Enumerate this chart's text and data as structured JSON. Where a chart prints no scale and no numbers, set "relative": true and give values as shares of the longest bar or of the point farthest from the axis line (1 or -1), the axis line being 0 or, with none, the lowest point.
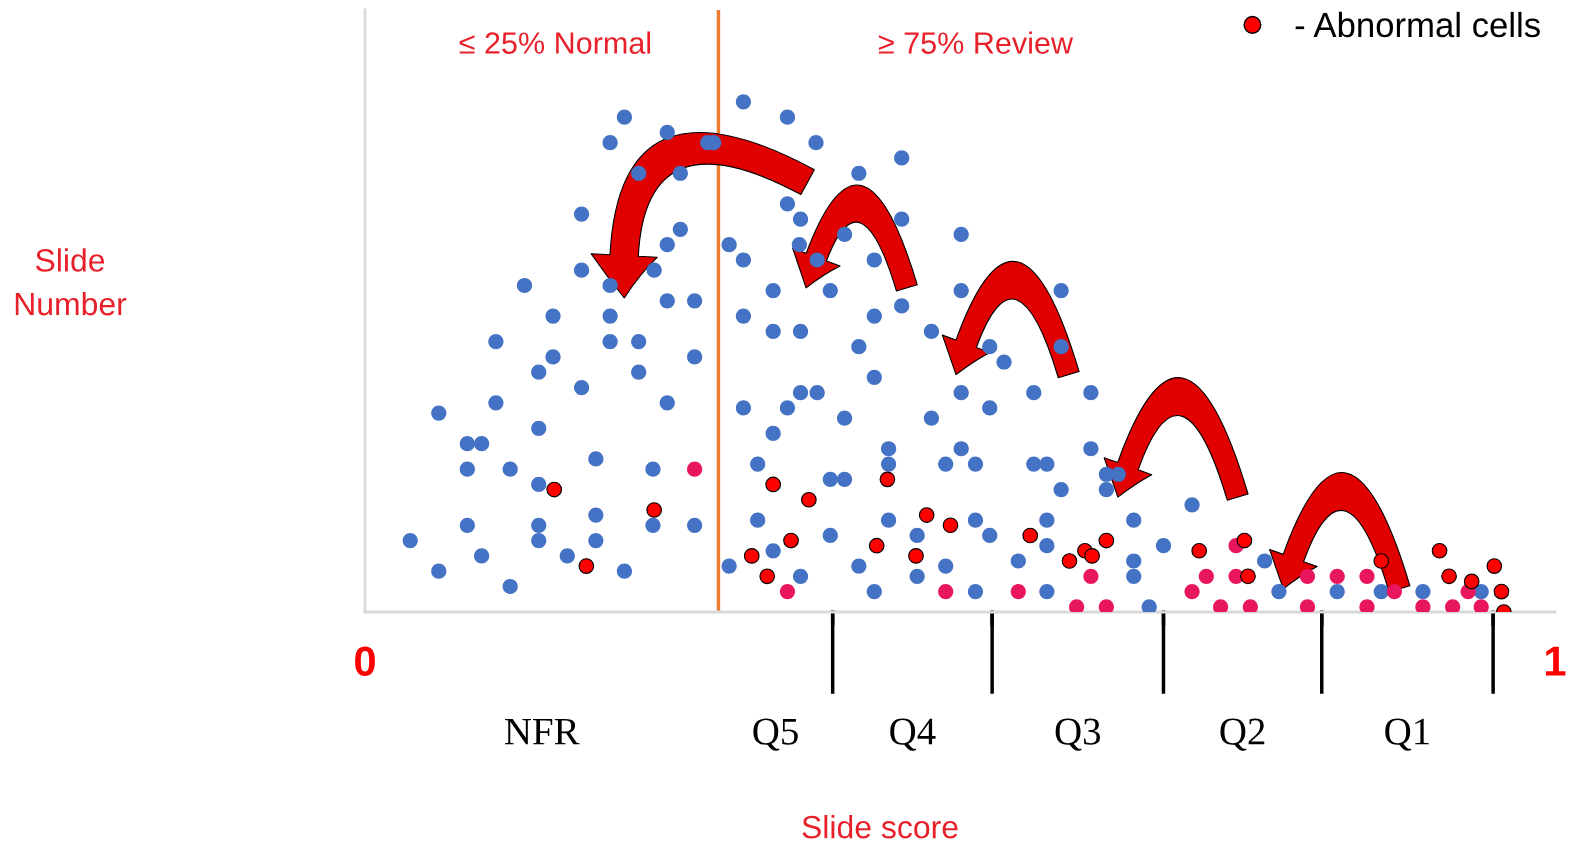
{
  "chart_data": {
    "type": "scatter",
    "relative": true,
    "xlabel": "Slide score",
    "annotations": [
      "≤ 25% Normal",
      "≥ 75% Review",
      "NFR",
      "Q5",
      "Q4",
      "Q3",
      "Q2",
      "Q1",
      "Slide\nNumber"
    ],
    "xlim": [
      0,
      1
    ],
    "xticks": [
      0,
      {
        "value": 0.393,
        "label": null
      },
      {
        "value": 0.527,
        "label": null
      },
      {
        "value": 0.671,
        "label": null
      },
      {
        "value": 0.804,
        "label": null
      },
      {
        "value": 0.948,
        "label": null
      },
      1
    ],
    "ref_lines": [
      {
        "axis": "x",
        "value": 0.297,
        "color": "#ed7d31"
      }
    ],
    "legend": "top right",
    "marker": "circle",
    "series": [
      {
        "color": "#4472c4",
        "x": [
          0.218,
          0.206,
          0.254,
          0.288,
          0.23,
          0.265,
          0.182,
          0.265,
          0.254,
          0.182,
          0.206,
          0.134,
          0.243,
          0.254,
          0.277,
          0.158,
          0.206,
          0.11,
          0.206,
          0.23,
          0.158,
          0.277,
          0.146,
          0.23,
          0.182,
          0.11,
          0.254,
          0.062,
          0.146,
          0.086,
          0.098,
          0.194,
          0.086,
          0.122,
          0.242,
          0.146,
          0.194,
          0.086,
          0.146,
          0.242,
          0.277,
          0.038,
          0.146,
          0.194,
          0.098,
          0.17,
          0.062,
          0.218,
          0.122,
          0.318,
          0.355,
          0.293,
          0.379,
          0.451,
          0.415,
          0.355,
          0.366,
          0.451,
          0.403,
          0.501,
          0.306,
          0.318,
          0.365,
          0.38,
          0.428,
          0.343,
          0.391,
          0.501,
          0.451,
          0.318,
          0.428,
          0.343,
          0.366,
          0.476,
          0.415,
          0.525,
          0.428,
          0.501,
          0.366,
          0.38,
          0.318,
          0.355,
          0.525,
          0.403,
          0.476,
          0.343,
          0.44,
          0.501,
          0.33,
          0.44,
          0.488,
          0.513,
          0.391,
          0.403,
          0.33,
          0.44,
          0.513,
          0.391,
          0.464,
          0.525,
          0.343,
          0.306,
          0.415,
          0.488,
          0.366,
          0.464,
          0.428,
          0.513,
          0.585,
          0.585,
          0.537,
          0.562,
          0.61,
          0.61,
          0.562,
          0.573,
          0.623,
          0.633,
          0.623,
          0.585,
          0.695,
          0.573,
          0.646,
          0.573,
          0.671,
          0.549,
          0.646,
          0.646,
          0.756,
          0.573,
          0.768,
          0.659,
          0.817,
          0.854,
          0.889,
          0.938
        ],
        "values": [
          0.97,
          0.92,
          0.94,
          0.92,
          0.86,
          0.86,
          0.78,
          0.75,
          0.72,
          0.67,
          0.64,
          0.64,
          0.67,
          0.61,
          0.61,
          0.58,
          0.58,
          0.53,
          0.53,
          0.53,
          0.5,
          0.5,
          0.47,
          0.47,
          0.44,
          0.41,
          0.41,
          0.39,
          0.36,
          0.33,
          0.33,
          0.3,
          0.28,
          0.28,
          0.28,
          0.25,
          0.19,
          0.17,
          0.17,
          0.17,
          0.17,
          0.14,
          0.14,
          0.14,
          0.11,
          0.11,
          0.08,
          0.08,
          0.05,
          1.0,
          0.97,
          0.92,
          0.92,
          0.89,
          0.86,
          0.8,
          0.77,
          0.77,
          0.74,
          0.74,
          0.72,
          0.69,
          0.72,
          0.69,
          0.69,
          0.63,
          0.63,
          0.63,
          0.6,
          0.58,
          0.58,
          0.55,
          0.55,
          0.55,
          0.52,
          0.52,
          0.46,
          0.43,
          0.43,
          0.43,
          0.4,
          0.4,
          0.4,
          0.38,
          0.38,
          0.35,
          0.32,
          0.32,
          0.29,
          0.29,
          0.29,
          0.29,
          0.26,
          0.26,
          0.18,
          0.18,
          0.18,
          0.15,
          0.15,
          0.15,
          0.12,
          0.09,
          0.09,
          0.09,
          0.07,
          0.07,
          0.04,
          0.04,
          0.63,
          0.52,
          0.49,
          0.43,
          0.43,
          0.32,
          0.29,
          0.29,
          0.27,
          0.27,
          0.24,
          0.24,
          0.21,
          0.18,
          0.18,
          0.13,
          0.13,
          0.1,
          0.1,
          0.07,
          0.1,
          0.04,
          0.04,
          0.01,
          0.04,
          0.04,
          0.04,
          0.04
        ]
      },
      {
        "color": "#e8175d",
        "x": [
          0.277,
          0.355,
          0.488,
          0.549,
          0.61,
          0.598,
          0.623,
          0.695,
          0.707,
          0.732,
          0.732,
          0.719,
          0.744,
          0.792,
          0.817,
          0.842,
          0.792,
          0.842,
          0.865,
          0.889,
          0.914,
          0.927,
          0.938
        ],
        "values": [
          0.28,
          0.04,
          0.04,
          0.04,
          0.07,
          0.01,
          0.01,
          0.04,
          0.07,
          0.07,
          0.13,
          0.01,
          0.01,
          0.07,
          0.07,
          0.07,
          0.01,
          0.01,
          0.04,
          0.01,
          0.01,
          0.04,
          0.01
        ]
      },
      {
        "name": "- Abnormal cells",
        "color": "#ff0000",
        "x": [
          0.159,
          0.243,
          0.186,
          0.343,
          0.373,
          0.439,
          0.472,
          0.492,
          0.358,
          0.43,
          0.325,
          0.463,
          0.338,
          0.559,
          0.592,
          0.605,
          0.611,
          0.623,
          0.701,
          0.739,
          0.742,
          0.854,
          0.903,
          0.911,
          0.93,
          0.949,
          0.955,
          0.957
        ],
        "values": [
          0.24,
          0.2,
          0.09,
          0.25,
          0.22,
          0.26,
          0.19,
          0.17,
          0.14,
          0.13,
          0.11,
          0.11,
          0.07,
          0.15,
          0.1,
          0.12,
          0.11,
          0.14,
          0.12,
          0.14,
          0.07,
          0.1,
          0.12,
          0.07,
          0.06,
          0.09,
          0.04,
          0.0
        ]
      }
    ]
  }
}
